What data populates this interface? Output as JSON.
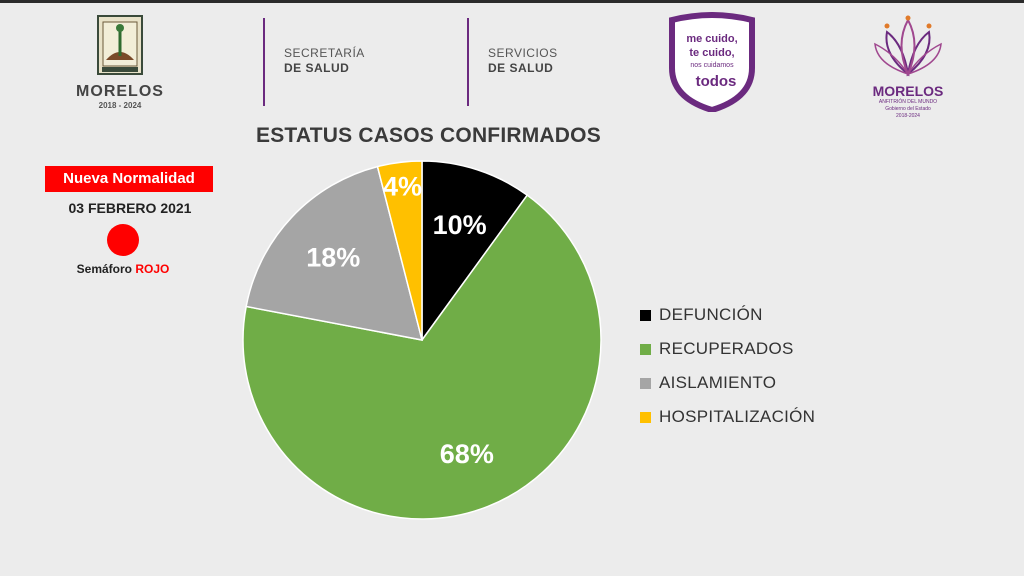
{
  "header": {
    "logo_left": {
      "name": "MORELOS",
      "years": "2018 - 2024",
      "seal_icon": "morelos-seal-icon"
    },
    "dept1": {
      "line1": "SECRETARÍA",
      "line2": "DE SALUD"
    },
    "dept2": {
      "line1": "SERVICIOS",
      "line2": "DE SALUD"
    },
    "campaign": {
      "line1": "me cuido,",
      "line2": "te cuido,",
      "line3": "nos cuidamos",
      "line4": "todos"
    },
    "logo_right": {
      "name": "MORELOS",
      "tagline": "ANFITRIÓN DEL MUNDO",
      "gov": "Gobierno del Estado",
      "years": "2018-2024"
    }
  },
  "status": {
    "badge": "Nueva Normalidad",
    "date": "03 FEBRERO 2021",
    "semaforo_label": "Semáforo",
    "semaforo_value": "ROJO",
    "semaforo_color": "#ff0000"
  },
  "chart_data": {
    "type": "pie",
    "title": "ESTATUS CASOS CONFIRMADOS",
    "legend_position": "right",
    "slices": [
      {
        "name": "DEFUNCIÓN",
        "value": 10,
        "label": "10%",
        "color": "#000000",
        "label_color": "#ffffff"
      },
      {
        "name": "RECUPERADOS",
        "value": 68,
        "label": "68%",
        "color": "#70ad47",
        "label_color": "#ffffff"
      },
      {
        "name": "AISLAMIENTO",
        "value": 18,
        "label": "18%",
        "color": "#a5a5a5",
        "label_color": "#ffffff"
      },
      {
        "name": "HOSPITALIZACIÓN",
        "value": 4,
        "label": "4%",
        "color": "#ffc000",
        "label_color": "#ffffff"
      }
    ]
  }
}
